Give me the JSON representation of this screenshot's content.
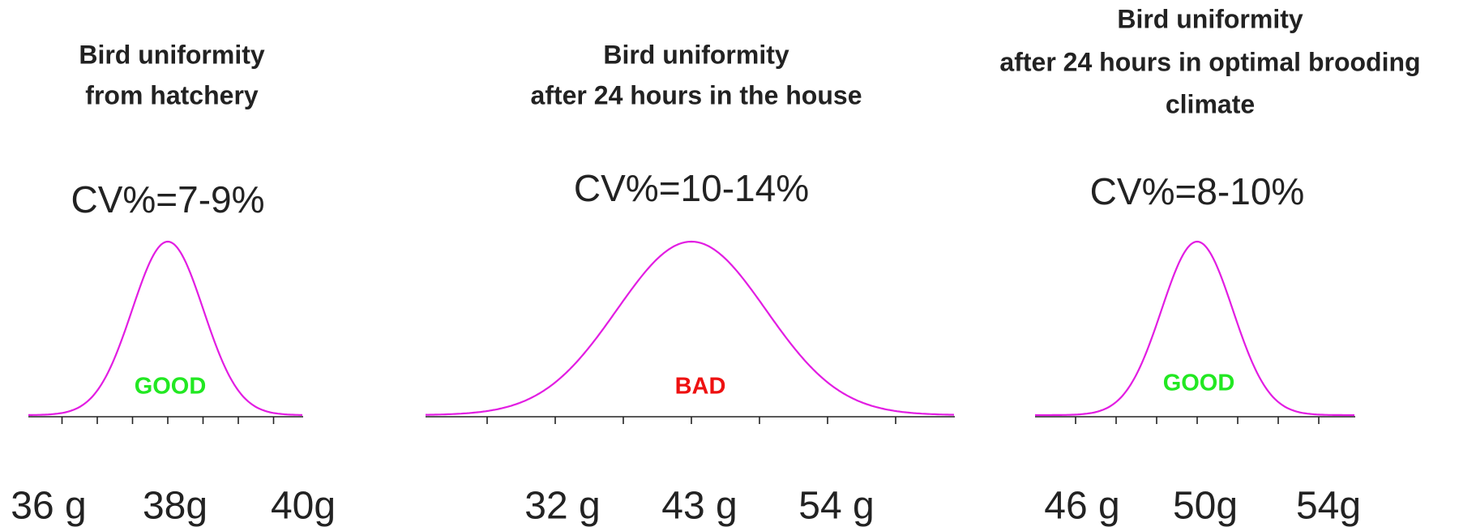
{
  "panels": [
    {
      "title": [
        "Bird uniformity",
        "from hatchery"
      ],
      "cv": "CV%=7-9%",
      "verdict": "GOOD",
      "labels": [
        "36 g",
        "38g",
        "40g"
      ]
    },
    {
      "title": [
        "Bird uniformity",
        "after 24 hours in the house"
      ],
      "cv": "CV%=10-14%",
      "verdict": "BAD",
      "labels": [
        "32 g",
        "43 g",
        "54 g"
      ]
    },
    {
      "title": [
        "Bird uniformity",
        "after 24 hours in optimal brooding",
        "climate"
      ],
      "cv": "CV%=8-10%",
      "verdict": "GOOD",
      "labels": [
        "46 g",
        "50g",
        "54g"
      ]
    }
  ]
}
